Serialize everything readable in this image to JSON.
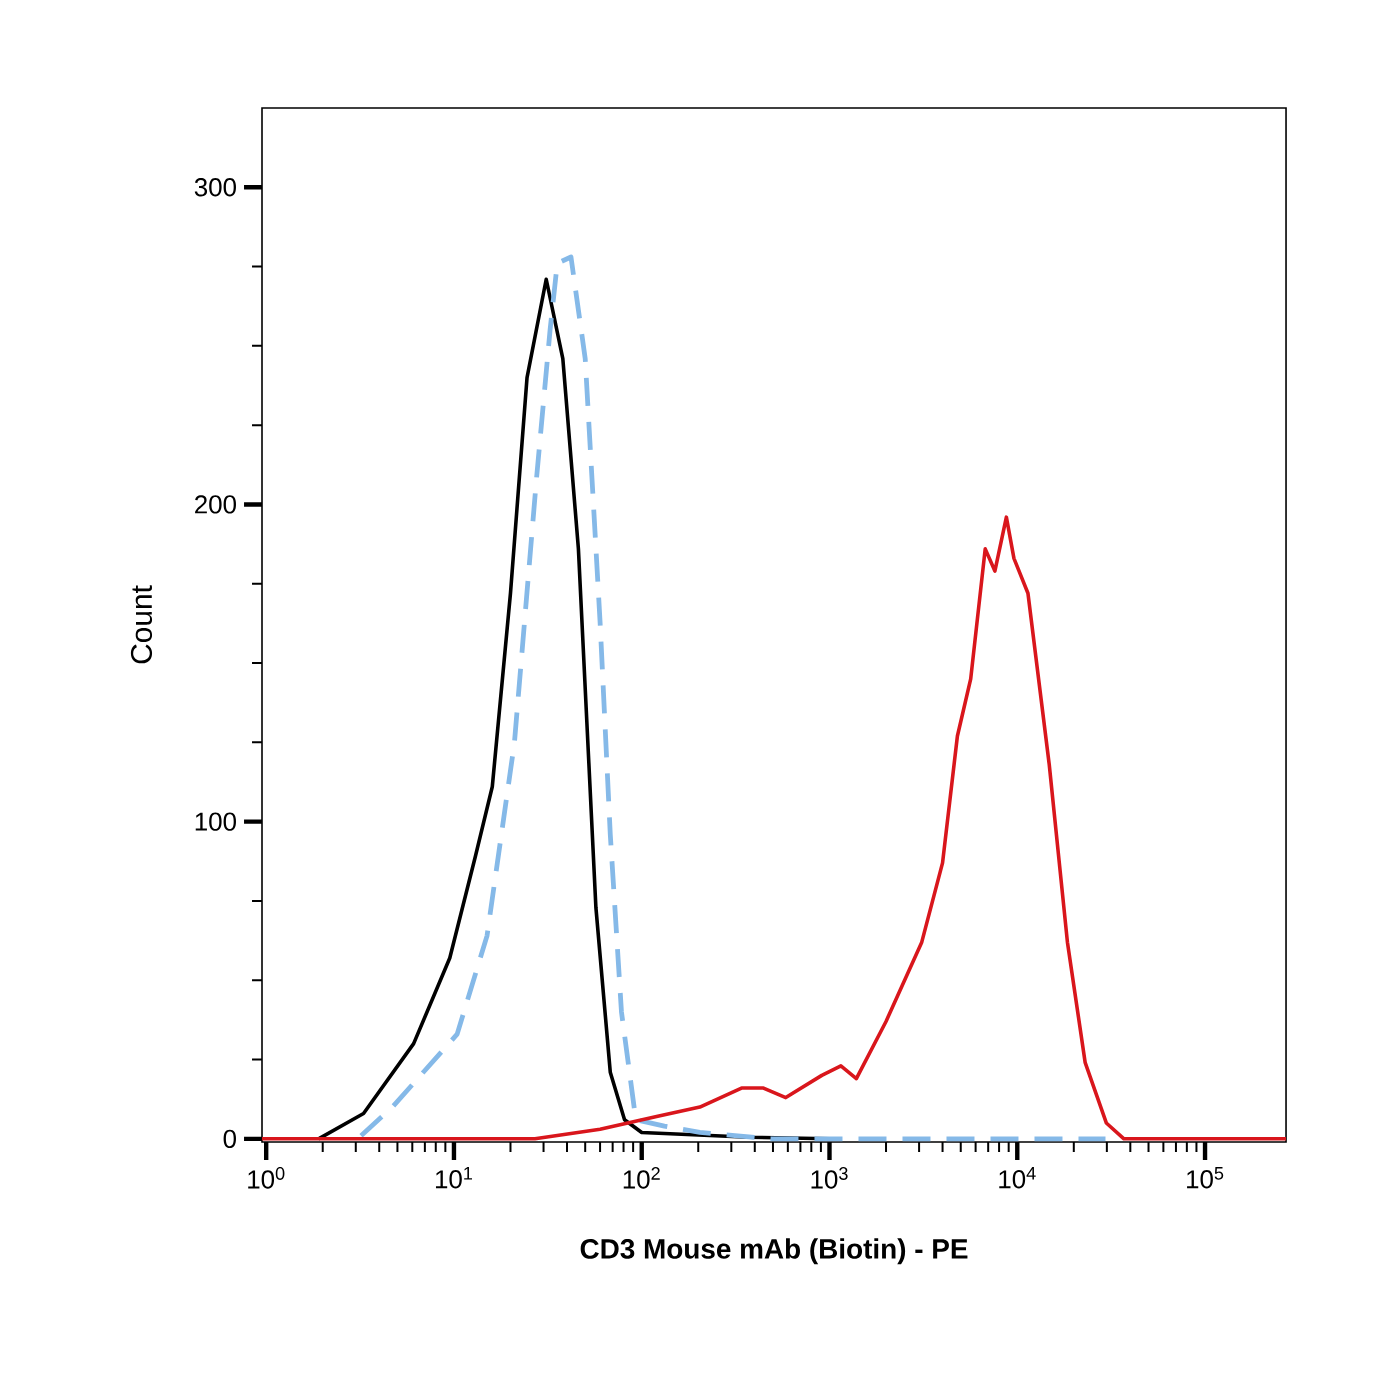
{
  "chart_data": {
    "type": "line",
    "xlabel": "CD3 Mouse mAb (Biotin) - PE",
    "ylabel": "Count",
    "log": "x",
    "xlim": [
      0.95,
      270000
    ],
    "ylim": [
      -1,
      325
    ],
    "xticks": [
      {
        "value": 1,
        "label": "10$^{0}$"
      },
      {
        "value": 10,
        "label": "10$^{1}$"
      },
      {
        "value": 100,
        "label": "10$^{2}$"
      },
      {
        "value": 1000,
        "label": "10$^{3}$"
      },
      {
        "value": 10000,
        "label": "10$^{4}$"
      },
      {
        "value": 100000,
        "label": "10$^{5}$"
      }
    ],
    "yticks": [
      0,
      {
        "value": 25,
        "label": null
      },
      {
        "value": 50,
        "label": null
      },
      {
        "value": 75,
        "label": null
      },
      100,
      {
        "value": 125,
        "label": null
      },
      {
        "value": 150,
        "label": null
      },
      {
        "value": 175,
        "label": null
      },
      200,
      {
        "value": 225,
        "label": null
      },
      {
        "value": 250,
        "label": null
      },
      {
        "value": 275,
        "label": null
      },
      300
    ],
    "series": [
      {
        "color": "#000000",
        "line_style": "solid",
        "x": [
          1.9,
          3.3,
          6.1,
          9.5,
          13,
          16,
          20,
          24.5,
          31,
          38,
          46,
          57,
          68,
          81,
          100,
          375,
          1000
        ],
        "values": [
          0,
          8,
          30,
          57,
          89,
          111,
          172,
          240,
          271,
          246,
          186,
          73,
          21,
          6,
          2,
          0.5,
          0
        ]
      },
      {
        "color": "#85b9e8",
        "line_style": "dashed",
        "x": [
          3.2,
          4.7,
          10.4,
          15,
          21,
          27.5,
          32.5,
          35.5,
          42,
          50,
          60,
          68,
          78,
          93,
          132,
          204,
          490,
          29500
        ],
        "values": [
          1,
          10,
          33,
          64,
          125,
          208,
          255,
          276,
          278,
          246,
          163,
          96,
          40,
          6,
          4,
          2,
          0,
          0
        ]
      },
      {
        "color": "#d9161c",
        "line_style": "solid",
        "x": [
          0.95,
          27,
          60,
          120,
          204,
          340,
          445,
          585,
          910,
          1150,
          1390,
          2000,
          3100,
          4000,
          4800,
          5650,
          6750,
          7600,
          8750,
          9600,
          11400,
          14800,
          18500,
          23000,
          29800,
          37000,
          270000
        ],
        "values": [
          0,
          0,
          3,
          7,
          10,
          16,
          16,
          13,
          20,
          23,
          19,
          37,
          62,
          87,
          127,
          145,
          186,
          179,
          196,
          183,
          172,
          118,
          62,
          24,
          5,
          0,
          0
        ]
      }
    ]
  }
}
